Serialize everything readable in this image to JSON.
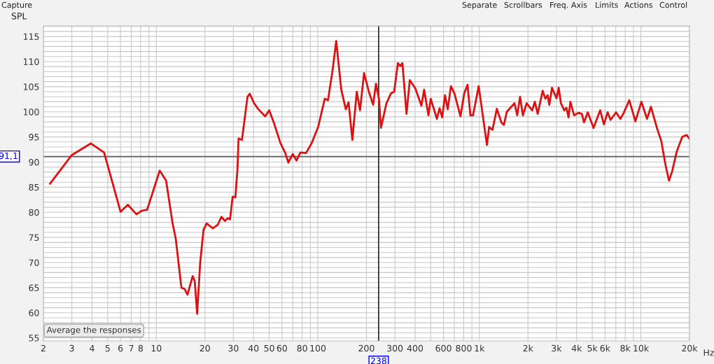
{
  "chart_data": {
    "type": "line",
    "ylabel": "SPL",
    "log": "x",
    "grid": true,
    "xlim": [
      2,
      20000
    ],
    "ylim": [
      54.4,
      117.1
    ],
    "xticks": [
      2,
      3,
      4,
      5,
      6,
      7,
      8,
      {
        "value": 9,
        "label": null
      },
      10,
      20,
      30,
      40,
      50,
      60,
      {
        "value": 70,
        "label": null
      },
      80,
      {
        "value": 90,
        "label": null
      },
      100,
      200,
      300,
      400,
      {
        "value": 500,
        "label": null
      },
      600,
      {
        "value": 700,
        "label": null
      },
      800,
      {
        "value": 900,
        "label": null
      },
      {
        "value": 1000,
        "label": "1k"
      },
      {
        "value": 2000,
        "label": "2k"
      },
      {
        "value": 3000,
        "label": "3k"
      },
      {
        "value": 4000,
        "label": "4k"
      },
      {
        "value": 5000,
        "label": "5k"
      },
      {
        "value": 6000,
        "label": "6k"
      },
      {
        "value": 7000,
        "label": null
      },
      {
        "value": 8000,
        "label": "8k"
      },
      {
        "value": 9000,
        "label": null
      },
      {
        "value": 10000,
        "label": "10k"
      },
      {
        "value": 20000,
        "label": "20k"
      }
    ],
    "xlabel": "Hz",
    "yticks": [
      55,
      {
        "value": 56,
        "label": null
      },
      {
        "value": 57,
        "label": null
      },
      {
        "value": 58,
        "label": null
      },
      {
        "value": 59,
        "label": null
      },
      60,
      {
        "value": 61,
        "label": null
      },
      {
        "value": 62,
        "label": null
      },
      {
        "value": 63,
        "label": null
      },
      {
        "value": 64,
        "label": null
      },
      65,
      {
        "value": 66,
        "label": null
      },
      {
        "value": 67,
        "label": null
      },
      {
        "value": 68,
        "label": null
      },
      {
        "value": 69,
        "label": null
      },
      70,
      {
        "value": 71,
        "label": null
      },
      {
        "value": 72,
        "label": null
      },
      {
        "value": 73,
        "label": null
      },
      {
        "value": 74,
        "label": null
      },
      75,
      {
        "value": 76,
        "label": null
      },
      {
        "value": 77,
        "label": null
      },
      {
        "value": 78,
        "label": null
      },
      {
        "value": 79,
        "label": null
      },
      80,
      {
        "value": 81,
        "label": null
      },
      {
        "value": 82,
        "label": null
      },
      {
        "value": 83,
        "label": null
      },
      {
        "value": 84,
        "label": null
      },
      85,
      {
        "value": 86,
        "label": null
      },
      {
        "value": 87,
        "label": null
      },
      {
        "value": 88,
        "label": null
      },
      {
        "value": 89,
        "label": null
      },
      90,
      {
        "value": 91,
        "label": null
      },
      {
        "value": 92,
        "label": null
      },
      {
        "value": 93,
        "label": null
      },
      {
        "value": 94,
        "label": null
      },
      95,
      {
        "value": 96,
        "label": null
      },
      {
        "value": 97,
        "label": null
      },
      {
        "value": 98,
        "label": null
      },
      {
        "value": 99,
        "label": null
      },
      100,
      {
        "value": 101,
        "label": null
      },
      {
        "value": 102,
        "label": null
      },
      {
        "value": 103,
        "label": null
      },
      {
        "value": 104,
        "label": null
      },
      105,
      {
        "value": 106,
        "label": null
      },
      {
        "value": 107,
        "label": null
      },
      {
        "value": 108,
        "label": null
      },
      {
        "value": 109,
        "label": null
      },
      110,
      {
        "value": 111,
        "label": null
      },
      {
        "value": 112,
        "label": null
      },
      {
        "value": 113,
        "label": null
      },
      {
        "value": 114,
        "label": null
      },
      115,
      {
        "value": 116,
        "label": null
      },
      {
        "value": 117,
        "label": null
      }
    ],
    "ref_lines": [
      {
        "axis": "y",
        "value": 91.1,
        "label": "91,1",
        "color": "#666666"
      },
      {
        "axis": "x",
        "value": 238,
        "label": "238",
        "color": "#222222"
      }
    ],
    "annotations": [
      "Capture",
      "Separate",
      "Scrollbars",
      "Freq. Axis",
      "Limits",
      "Actions",
      "Control",
      "Average the responses"
    ],
    "series": [
      {
        "color": "#dd1111",
        "x": [
          2.2,
          3.0,
          3.93,
          4.75,
          6.01,
          6.67,
          7.54,
          8.11,
          8.77,
          9.49,
          10.5,
          11.5,
          12.6,
          13.2,
          14.3,
          15.0,
          15.6,
          16.8,
          17.3,
          17.9,
          18.7,
          19.6,
          20.5,
          22.4,
          24.0,
          25.3,
          26.6,
          27.7,
          28.6,
          29.7,
          30.9,
          31.8,
          32.3,
          33.9,
          36.7,
          37.9,
          40.3,
          42.9,
          47.2,
          50.0,
          53.6,
          58.8,
          62.7,
          65.7,
          70.0,
          73.8,
          78.0,
          84.5,
          91.4,
          100.5,
          110.4,
          115.6,
          123.3,
          130.0,
          139.7,
          149.0,
          155.0,
          163.6,
          174.2,
          182.5,
          193.3,
          207,
          220,
          229,
          239,
          246,
          266,
          284,
          297,
          313,
          324,
          334,
          354,
          371,
          401,
          438,
          455,
          484,
          500,
          546,
          567,
          589,
          613,
          637,
          667,
          702,
          764,
          806,
          845,
          880,
          914,
          991,
          1114,
          1150,
          1206,
          1283,
          1368,
          1420,
          1479,
          1651,
          1715,
          1787,
          1859,
          1963,
          2124,
          2205,
          2297,
          2467,
          2563,
          2647,
          2711,
          2816,
          3003,
          3099,
          3200,
          3354,
          3460,
          3568,
          3660,
          3862,
          4111,
          4308,
          4448,
          4690,
          5093,
          5598,
          5904,
          6226,
          6490,
          7017,
          7466,
          7834,
          8475,
          9250,
          10075,
          10914,
          11543,
          12570,
          13375,
          14234,
          14930,
          15640,
          16670,
          18040,
          19200,
          20000
        ],
        "values": [
          85.7,
          91.4,
          93.7,
          91.9,
          80.1,
          81.5,
          79.6,
          80.3,
          80.5,
          83.9,
          88.3,
          86.3,
          77.9,
          74.7,
          65.0,
          64.7,
          63.6,
          67.3,
          66.3,
          59.8,
          70.0,
          76.5,
          77.8,
          76.8,
          77.5,
          79.1,
          78.3,
          78.8,
          78.6,
          83.1,
          83.0,
          88.6,
          94.7,
          94.4,
          103.0,
          103.6,
          101.7,
          100.5,
          99.1,
          100.3,
          97.7,
          93.7,
          91.9,
          89.9,
          91.6,
          90.3,
          91.9,
          91.8,
          93.7,
          97.0,
          102.6,
          102.3,
          108.2,
          114.1,
          104.4,
          100.5,
          101.9,
          94.4,
          104.0,
          100.3,
          107.7,
          104.0,
          101.4,
          105.6,
          102.6,
          96.8,
          101.7,
          103.7,
          104.0,
          109.7,
          109.1,
          109.7,
          99.6,
          106.3,
          104.7,
          101.2,
          104.4,
          99.3,
          102.6,
          98.6,
          100.7,
          98.9,
          103.3,
          100.5,
          105.1,
          103.6,
          99.1,
          103.7,
          105.4,
          99.3,
          99.3,
          105.1,
          93.4,
          97.0,
          96.4,
          100.6,
          97.9,
          97.4,
          100.0,
          101.7,
          99.3,
          103.0,
          99.3,
          101.7,
          100.3,
          102.0,
          99.6,
          104.2,
          102.6,
          103.3,
          101.4,
          104.8,
          102.7,
          104.8,
          101.7,
          100.3,
          100.8,
          98.9,
          102.0,
          99.3,
          99.8,
          99.6,
          97.9,
          99.9,
          96.8,
          100.3,
          97.5,
          99.9,
          98.4,
          99.9,
          98.6,
          99.8,
          102.3,
          98.1,
          102.0,
          98.6,
          101.0,
          96.8,
          94.2,
          89.3,
          86.3,
          88.2,
          92.1,
          95.0,
          95.4,
          94.6
        ]
      }
    ]
  }
}
